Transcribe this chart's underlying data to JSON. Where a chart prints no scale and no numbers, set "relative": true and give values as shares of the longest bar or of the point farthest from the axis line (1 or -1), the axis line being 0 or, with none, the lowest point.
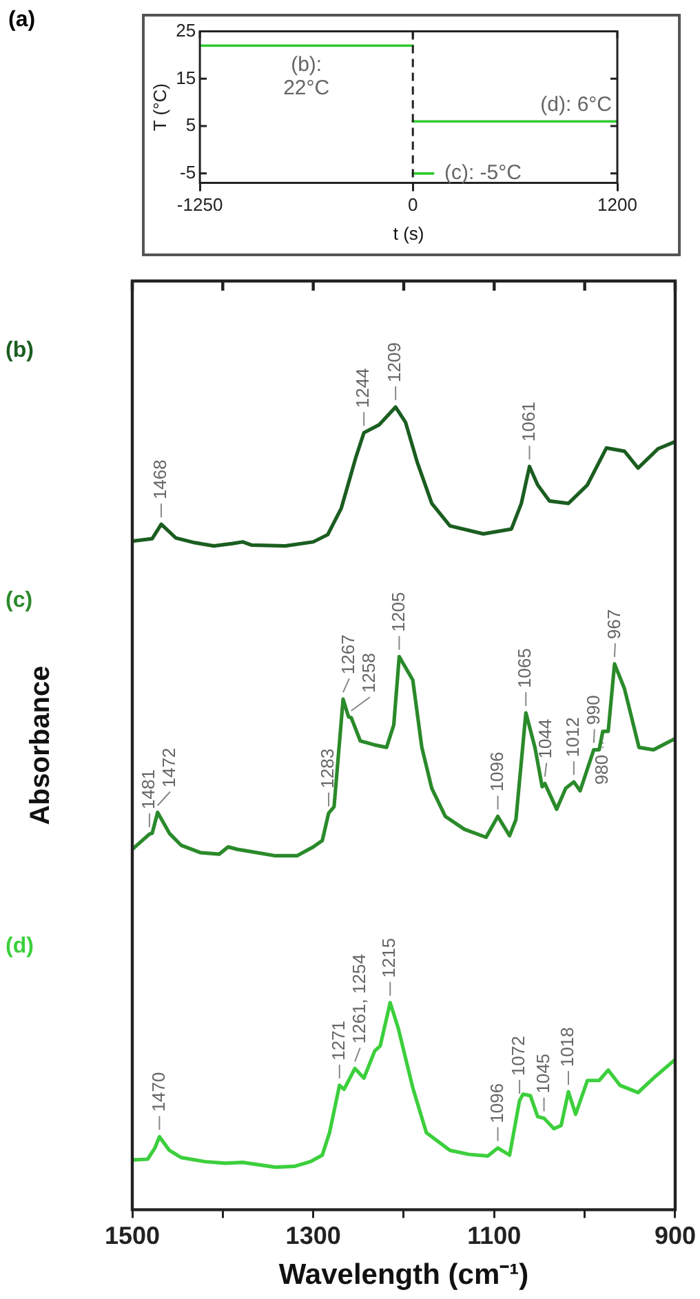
{
  "chart_data": [
    {
      "type": "line",
      "xlabel": "t (s)",
      "ylabel": "T (°C)",
      "xlim": [
        -1250,
        1200
      ],
      "xticks": [
        -1250,
        0,
        1200
      ],
      "ylim": [
        -7,
        25
      ],
      "yticks": [
        -5,
        5,
        15,
        25
      ],
      "series": [
        {
          "name": "(b): 22°C",
          "color": "#2ecc2e",
          "x": [
            -1250,
            0
          ],
          "values": [
            22,
            22
          ]
        },
        {
          "name": "(c): -5°C",
          "color": "#2ecc2e",
          "x": [
            0,
            120
          ],
          "values": [
            -5,
            -5
          ]
        },
        {
          "name": "(d): 6°C",
          "color": "#2ecc2e",
          "x": [
            0,
            1200
          ],
          "values": [
            6,
            6
          ]
        }
      ],
      "ref_lines": [
        {
          "axis": "x",
          "value": 0,
          "color": "#222222",
          "line_style": "dashed"
        }
      ],
      "annotations": [
        "(a)"
      ]
    },
    {
      "type": "line",
      "relative": true,
      "xlabel": "Wavelength (cm⁻¹)",
      "ylabel": "Absorbance",
      "xlim": [
        1500,
        900
      ],
      "xticks": [
        1500,
        {
          "value": 1400,
          "label": null
        },
        1300,
        {
          "value": 1200,
          "label": null
        },
        1100,
        {
          "value": 1000,
          "label": null
        },
        900
      ],
      "series": [
        {
          "name": "(b)",
          "color": "#1b5e20",
          "x": [
            1500,
            1478,
            1468,
            1452,
            1431,
            1410,
            1389,
            1378,
            1368,
            1331,
            1300,
            1284,
            1269,
            1253,
            1244,
            1227,
            1209,
            1198,
            1185,
            1169,
            1149,
            1112,
            1081,
            1070,
            1061,
            1052,
            1039,
            1018,
            997,
            976,
            956,
            941,
            919,
            900
          ],
          "values": [
            0.833,
            0.836,
            0.854,
            0.837,
            0.831,
            0.827,
            0.83,
            0.832,
            0.828,
            0.827,
            0.832,
            0.841,
            0.874,
            0.937,
            0.968,
            0.978,
            1.0,
            0.981,
            0.931,
            0.88,
            0.852,
            0.842,
            0.848,
            0.88,
            0.926,
            0.903,
            0.883,
            0.88,
            0.903,
            0.949,
            0.945,
            0.924,
            0.948,
            0.957
          ]
        },
        {
          "name": "(c)",
          "color": "#2a8a2a",
          "x": [
            1500,
            1481,
            1478,
            1472,
            1459,
            1446,
            1425,
            1404,
            1394,
            1384,
            1368,
            1342,
            1318,
            1300,
            1290,
            1283,
            1277,
            1267,
            1261,
            1258,
            1248,
            1232,
            1219,
            1211,
            1205,
            1190,
            1180,
            1169,
            1154,
            1133,
            1109,
            1096,
            1083,
            1076,
            1065,
            1055,
            1047,
            1044,
            1031,
            1021,
            1012,
            1005,
            990,
            984,
            980,
            974,
            967,
            956,
            940,
            924,
            900
          ],
          "values": [
            0.449,
            0.468,
            0.469,
            0.495,
            0.469,
            0.454,
            0.445,
            0.443,
            0.452,
            0.449,
            0.446,
            0.441,
            0.441,
            0.452,
            0.46,
            0.494,
            0.502,
            0.636,
            0.614,
            0.613,
            0.584,
            0.579,
            0.576,
            0.604,
            0.689,
            0.66,
            0.576,
            0.525,
            0.49,
            0.474,
            0.464,
            0.49,
            0.466,
            0.486,
            0.619,
            0.576,
            0.527,
            0.531,
            0.499,
            0.525,
            0.533,
            0.522,
            0.573,
            0.573,
            0.596,
            0.596,
            0.68,
            0.649,
            0.576,
            0.573,
            0.587
          ]
        },
        {
          "name": "(d)",
          "color": "#3ccf3c",
          "x": [
            1500,
            1483,
            1475,
            1470,
            1459,
            1446,
            1420,
            1397,
            1378,
            1342,
            1321,
            1303,
            1290,
            1282,
            1271,
            1266,
            1254,
            1244,
            1232,
            1226,
            1215,
            1206,
            1190,
            1175,
            1149,
            1128,
            1107,
            1096,
            1083,
            1072,
            1068,
            1060,
            1052,
            1045,
            1034,
            1026,
            1018,
            1010,
            997,
            984,
            974,
            961,
            941,
            924,
            900
          ],
          "values": [
            0.062,
            0.063,
            0.077,
            0.091,
            0.074,
            0.065,
            0.06,
            0.058,
            0.059,
            0.053,
            0.054,
            0.06,
            0.068,
            0.096,
            0.155,
            0.15,
            0.176,
            0.164,
            0.198,
            0.204,
            0.258,
            0.226,
            0.152,
            0.096,
            0.074,
            0.069,
            0.067,
            0.077,
            0.068,
            0.136,
            0.144,
            0.142,
            0.116,
            0.114,
            0.101,
            0.105,
            0.147,
            0.119,
            0.161,
            0.161,
            0.174,
            0.155,
            0.146,
            0.164,
            0.187
          ]
        }
      ],
      "annotations": [
        {
          "text": "1468",
          "x": 1468,
          "y": 0.854
        },
        {
          "text": "1244",
          "x": 1244,
          "y": 0.968
        },
        {
          "text": "1209",
          "x": 1209,
          "y": 1.0
        },
        {
          "text": "1061",
          "x": 1061,
          "y": 0.926
        },
        {
          "text": "1481",
          "x": 1481,
          "y": 0.468
        },
        {
          "text": "1472",
          "x": 1472,
          "y": 0.495
        },
        {
          "text": "1283",
          "x": 1283,
          "y": 0.494
        },
        {
          "text": "1267",
          "x": 1267,
          "y": 0.636
        },
        {
          "text": "1258",
          "x": 1258,
          "y": 0.613
        },
        {
          "text": "1205",
          "x": 1205,
          "y": 0.689
        },
        {
          "text": "1096",
          "x": 1096,
          "y": 0.49
        },
        {
          "text": "1065",
          "x": 1065,
          "y": 0.619
        },
        {
          "text": "1044",
          "x": 1044,
          "y": 0.531
        },
        {
          "text": "1012",
          "x": 1012,
          "y": 0.533
        },
        {
          "text": "990",
          "x": 990,
          "y": 0.573
        },
        {
          "text": "980",
          "x": 980,
          "y": 0.596
        },
        {
          "text": "967",
          "x": 967,
          "y": 0.68
        },
        {
          "text": "1470",
          "x": 1470,
          "y": 0.091
        },
        {
          "text": "1271",
          "x": 1271,
          "y": 0.155
        },
        {
          "text": "1261, 1254",
          "x": 1254,
          "y": 0.176
        },
        {
          "text": "1215",
          "x": 1215,
          "y": 0.258
        },
        {
          "text": "1096",
          "x": 1096,
          "y": 0.077
        },
        {
          "text": "1072",
          "x": 1072,
          "y": 0.136
        },
        {
          "text": "1045",
          "x": 1045,
          "y": 0.114
        },
        {
          "text": "1018",
          "x": 1018,
          "y": 0.147
        }
      ]
    }
  ]
}
